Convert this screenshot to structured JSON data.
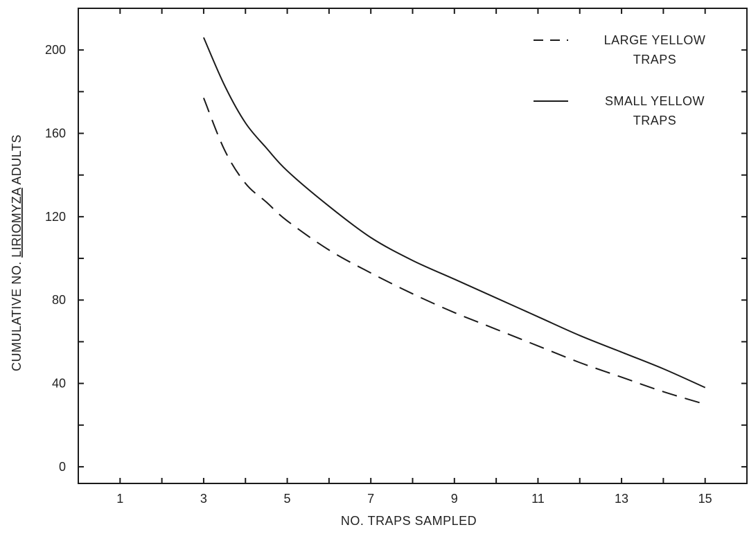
{
  "chart_data": {
    "type": "line",
    "xlabel": "NO. TRAPS SAMPLED",
    "ylabel_parts": [
      "CUMULATIVE NO. ",
      "LIRIOMYZA",
      " ADULTS"
    ],
    "xlim": [
      0,
      16
    ],
    "ylim": [
      -8,
      220
    ],
    "x_ticks": [
      1,
      3,
      5,
      7,
      9,
      11,
      13,
      15
    ],
    "y_ticks": [
      0,
      40,
      80,
      120,
      160,
      200
    ],
    "grid": false,
    "legend_position": "top-right",
    "series": [
      {
        "name": "LARGE YELLOW TRAPS",
        "legend_lines": [
          "LARGE YELLOW",
          "TRAPS"
        ],
        "style": "dashed",
        "color": "#1a1a1a",
        "x": [
          3,
          3.5,
          4,
          4.5,
          5,
          6,
          7,
          8,
          9,
          10,
          11,
          12,
          13,
          14,
          15
        ],
        "y": [
          177,
          152,
          136,
          127,
          118,
          104,
          93,
          83,
          74,
          66,
          58,
          50,
          43,
          36,
          30
        ]
      },
      {
        "name": "SMALL YELLOW TRAPS",
        "legend_lines": [
          "SMALL YELLOW",
          "TRAPS"
        ],
        "style": "solid",
        "color": "#1a1a1a",
        "x": [
          3,
          3.5,
          4,
          4.5,
          5,
          6,
          7,
          8,
          9,
          10,
          11,
          12,
          13,
          14,
          15
        ],
        "y": [
          206,
          183,
          165,
          153,
          142,
          125,
          110,
          99,
          90,
          81,
          72,
          63,
          55,
          47,
          38
        ]
      }
    ]
  }
}
